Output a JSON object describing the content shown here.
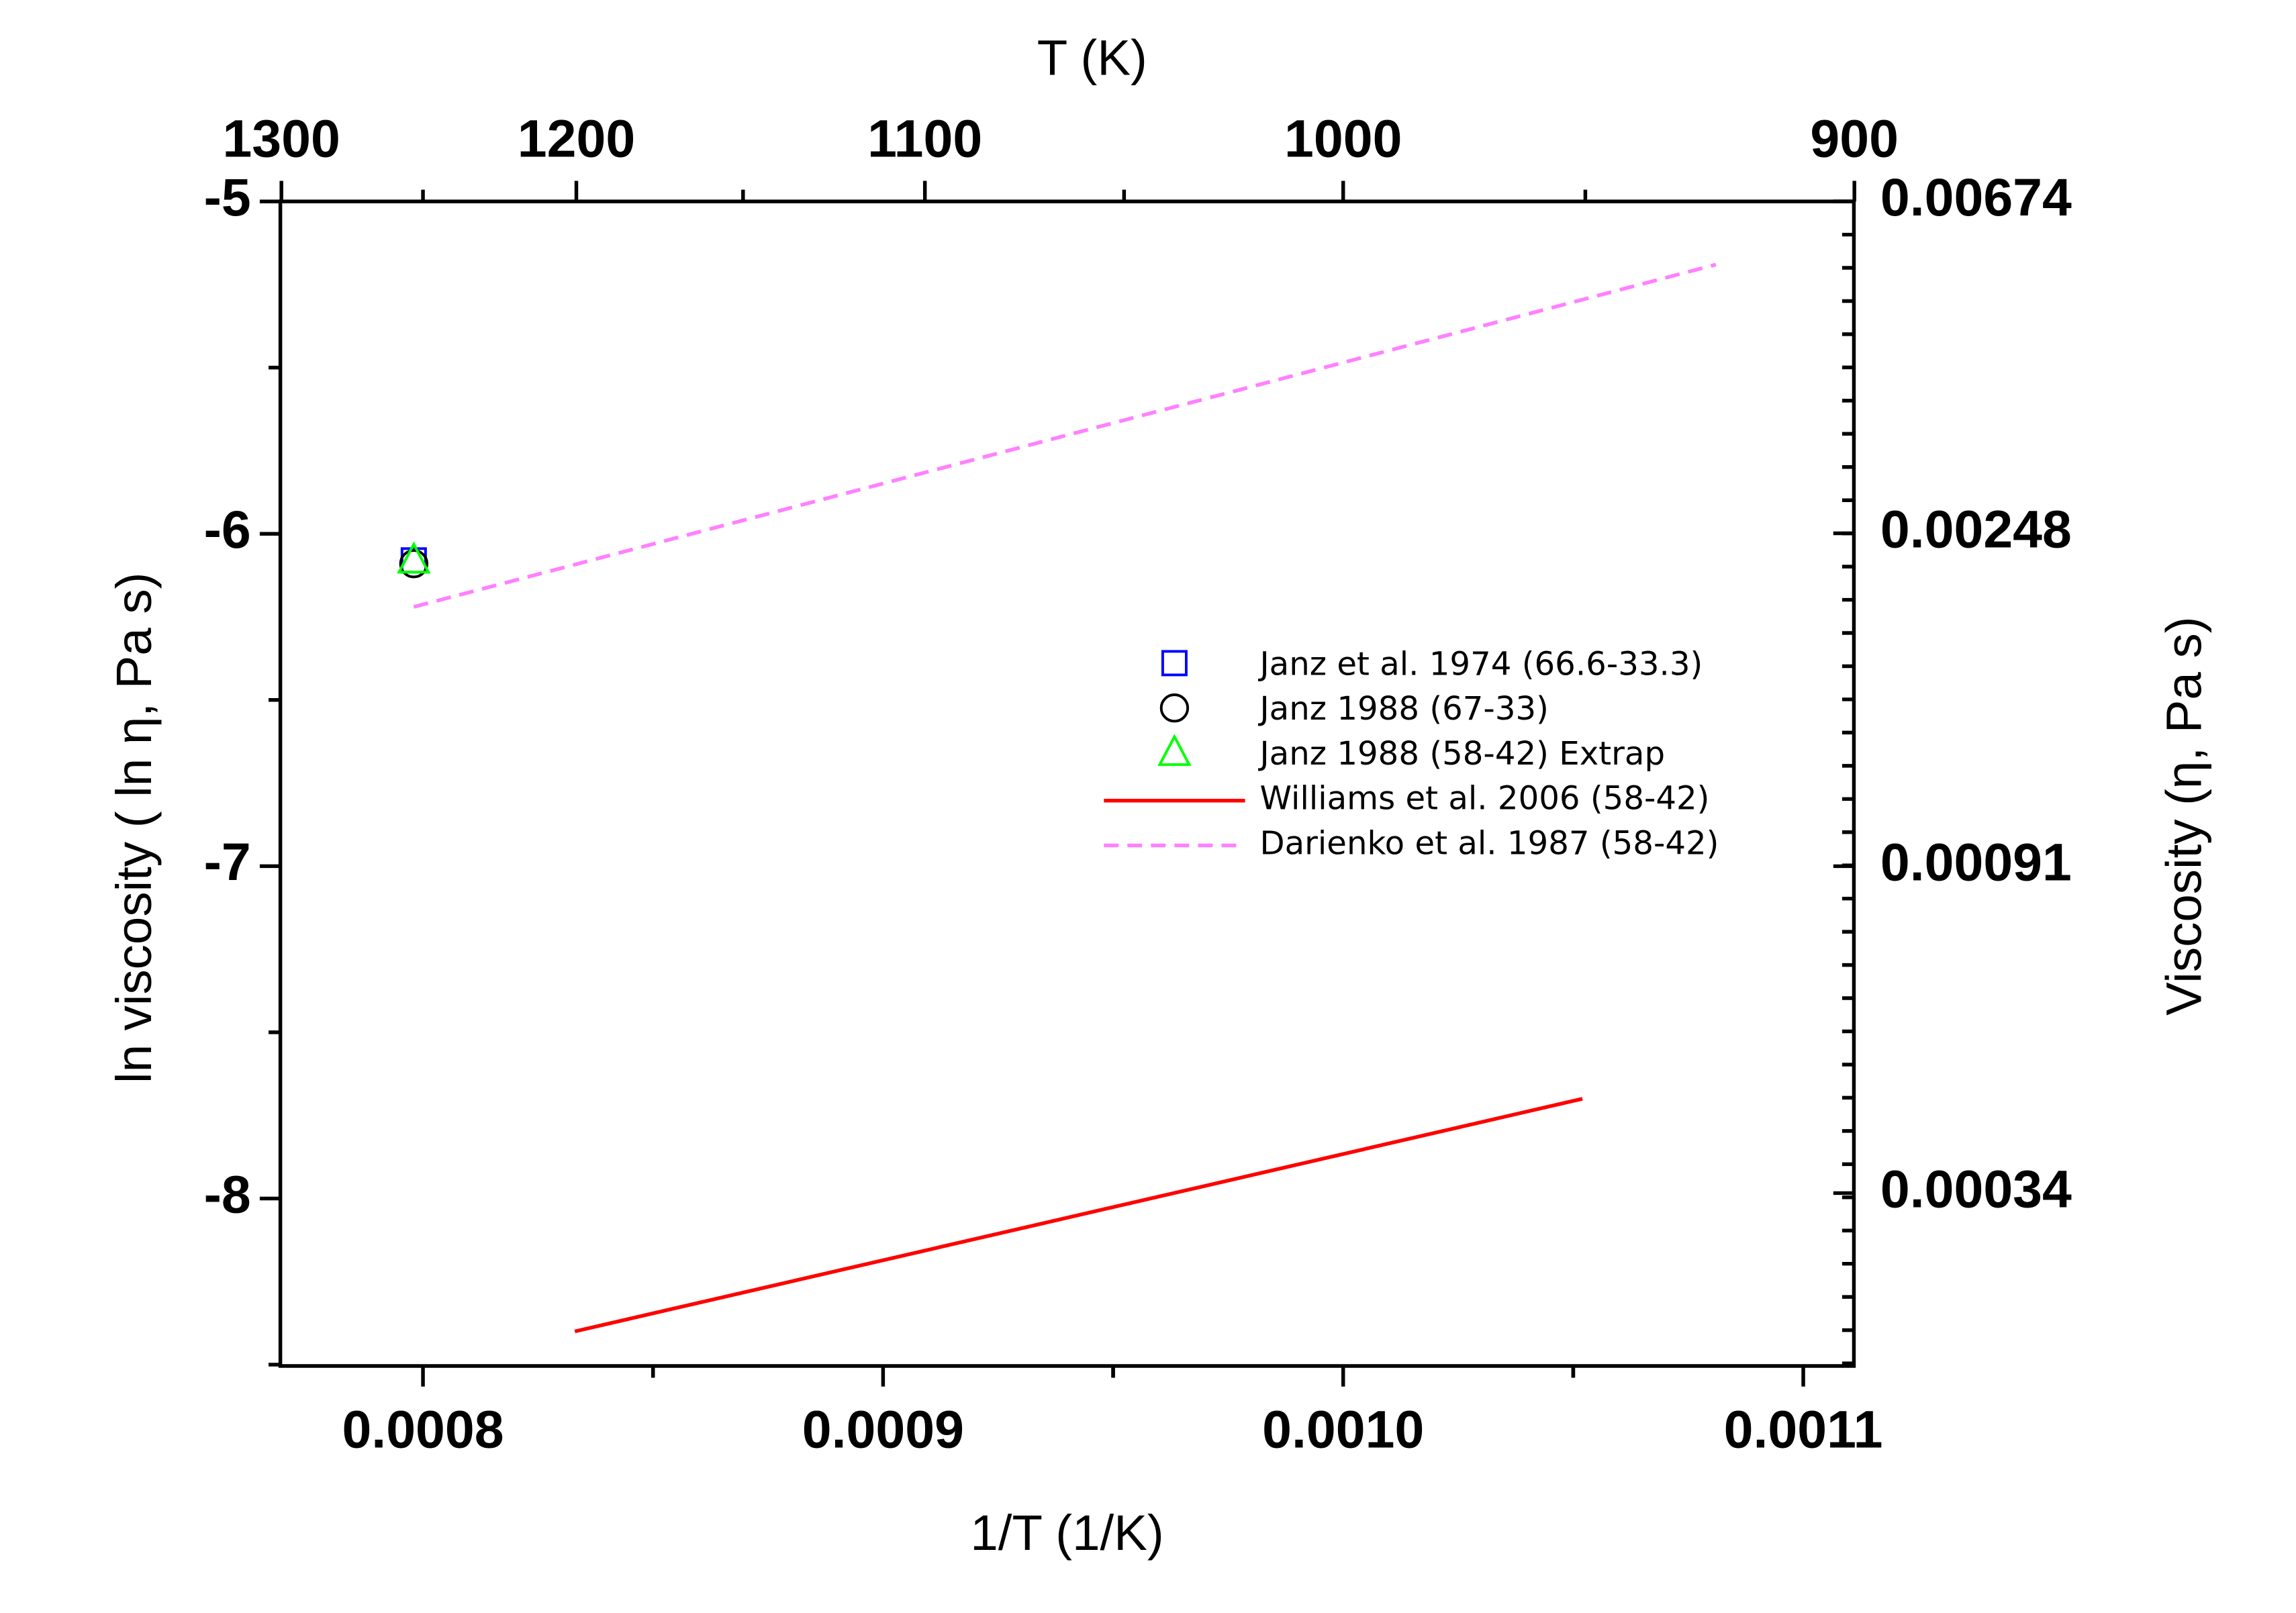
{
  "chart_data": {
    "type": "line",
    "x2label": "T (K)",
    "xlabel": "1/T (1/K)",
    "ylabel": "ln viscosity ( ln η, Pa s)",
    "y2label": "Viscosity (η, Pa s)",
    "xlim": [
      0.000769,
      0.001111
    ],
    "xticks": [
      0.0008,
      0.0009,
      {
        "value": 0.001,
        "label": "0.0010"
      },
      0.0011
    ],
    "x2ticks": [
      1300,
      1200,
      1100,
      1000,
      900
    ],
    "ylim": [
      -8.504,
      -5
    ],
    "yticks": [
      -5,
      -6,
      -7,
      -8
    ],
    "y2lim": [
      0.000202,
      0.006738
    ],
    "y2ticks": [
      0.00674,
      0.00248,
      0.00091,
      0.00034
    ],
    "y2scale": "log",
    "minor_ticks": true,
    "legend": "center-right",
    "series": [
      {
        "name": "Janz et al. 1974 (66.6-33.3)",
        "color": "#0000ff",
        "marker": "square",
        "x": [
          0.000798
        ],
        "values": [
          -6.08
        ]
      },
      {
        "name": "Janz 1988 (67-33)",
        "color": "#000000",
        "marker": "circle",
        "x": [
          0.000798
        ],
        "values": [
          -6.09
        ]
      },
      {
        "name": "Janz 1988 (58-42) Extrap",
        "color": "#00ff00",
        "marker": "triangle",
        "x": [
          0.000798
        ],
        "values": [
          -6.08
        ]
      },
      {
        "name": "Williams et al. 2006 (58-42)",
        "color": "#ff0000",
        "line": "solid",
        "x": [
          0.000833,
          0.001052
        ],
        "values": [
          -8.4,
          -7.7
        ]
      },
      {
        "name": "Darienko et al. 1987 (58-42)",
        "color": "#ff80ff",
        "line": "dashed",
        "x": [
          0.000798,
          0.001081
        ],
        "values": [
          -6.22,
          -5.19
        ]
      }
    ]
  }
}
